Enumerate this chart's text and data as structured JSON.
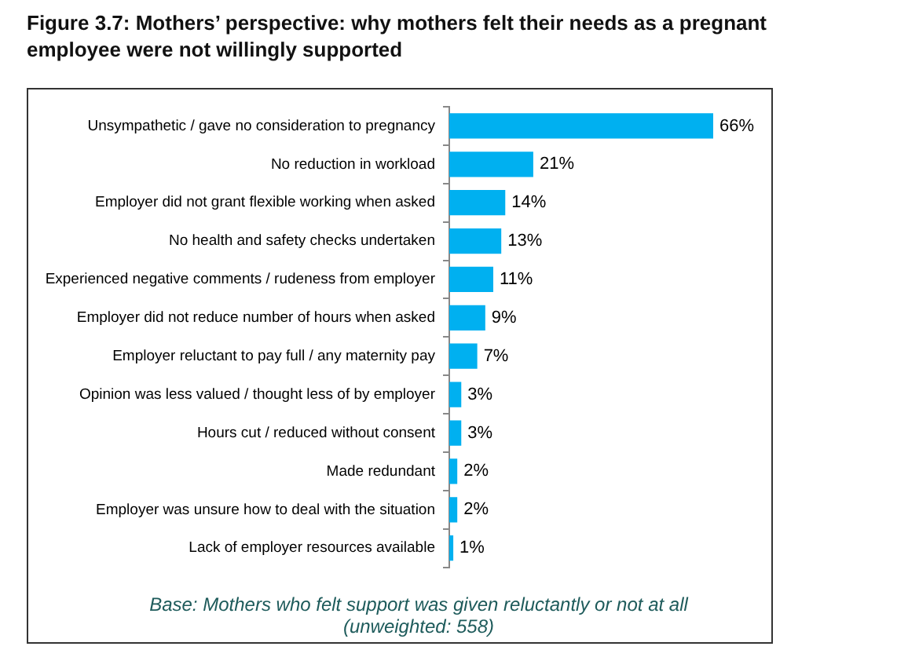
{
  "chart_data": {
    "type": "bar",
    "orientation": "horizontal",
    "title": "Figure 3.7: Mothers’ perspective: why mothers felt their needs as a pregnant employee were not willingly supported",
    "categories": [
      "Unsympathetic / gave no consideration to pregnancy",
      "No reduction in workload",
      "Employer did not grant flexible working when asked",
      "No health and safety checks undertaken",
      "Experienced negative comments / rudeness from employer",
      "Employer did not reduce number of hours when asked",
      "Employer reluctant to pay full / any maternity pay",
      "Opinion was less valued / thought less of by employer",
      "Hours cut / reduced without consent",
      "Made redundant",
      "Employer was unsure how to deal with the situation",
      "Lack of employer resources available"
    ],
    "values": [
      66,
      21,
      14,
      13,
      11,
      9,
      7,
      3,
      3,
      2,
      2,
      1
    ],
    "color": "#00b0f0",
    "value_labels": [
      "66%",
      "21%",
      "14%",
      "13%",
      "11%",
      "9%",
      "7%",
      "3%",
      "3%",
      "2%",
      "2%",
      "1%"
    ],
    "annotations": [
      "Base: Mothers who felt support was given reluctantly or not at all (unweighted: 558)"
    ]
  }
}
